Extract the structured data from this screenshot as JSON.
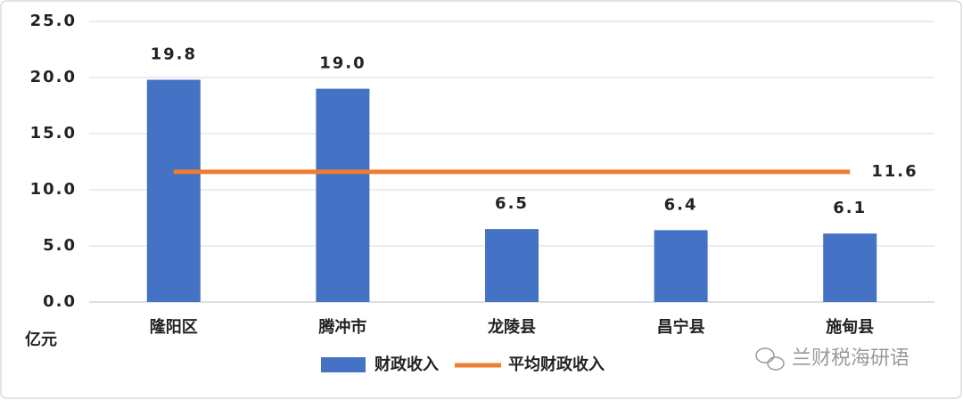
{
  "chart_data": {
    "type": "bar",
    "y_unit": "亿元",
    "categories": [
      "隆阳区",
      "腾冲市",
      "龙陵县",
      "昌宁县",
      "施甸县"
    ],
    "series": [
      {
        "name": "财政收入",
        "type": "bar",
        "color": "#4472C4",
        "values": [
          19.8,
          19.0,
          6.5,
          6.4,
          6.1
        ],
        "value_labels": [
          "19.8",
          "19.0",
          "6.5",
          "6.4",
          "6.1"
        ]
      },
      {
        "name": "平均财政收入",
        "type": "line",
        "color": "#ED7D31",
        "values": [
          11.6,
          11.6,
          11.6,
          11.6,
          11.6
        ]
      }
    ],
    "ylim": [
      0,
      25
    ],
    "yticks": [
      {
        "value": 0,
        "label": "0.0"
      },
      {
        "value": 5,
        "label": "5.0"
      },
      {
        "value": 10,
        "label": "10.0"
      },
      {
        "value": 15,
        "label": "15.0"
      },
      {
        "value": 20,
        "label": "20.0"
      },
      {
        "value": 25,
        "label": "25.0"
      }
    ],
    "grid": true,
    "legend": "bottom",
    "watermark": "兰财税海研语"
  }
}
